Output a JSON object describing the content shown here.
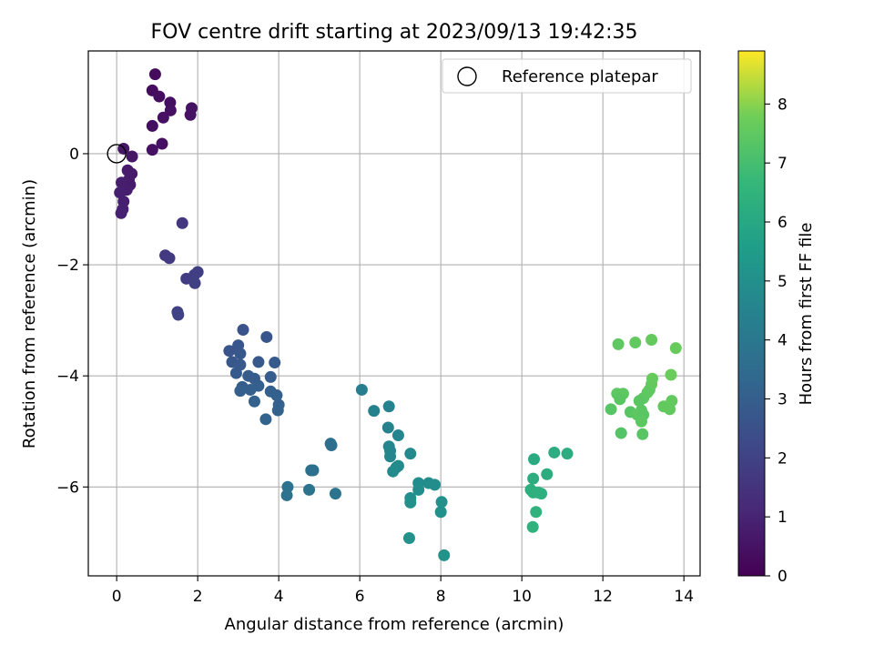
{
  "chart_data": {
    "type": "scatter",
    "title": "FOV centre drift starting at 2023/09/13 19:42:35",
    "xlabel": "Angular distance from reference (arcmin)",
    "ylabel": "Rotation from reference (arcmin)",
    "xlim": [
      -0.7,
      14.4
    ],
    "ylim": [
      -7.6,
      1.85
    ],
    "xticks": [
      0,
      2,
      4,
      6,
      8,
      10,
      12,
      14
    ],
    "yticks": [
      -6,
      -4,
      -2,
      0
    ],
    "grid": true,
    "legend": {
      "position": "top-right",
      "entries": [
        "Reference platepar"
      ]
    },
    "reference_point": {
      "x": 0,
      "y": 0
    },
    "colorbar": {
      "label": "Hours from first FF file",
      "colormap": "viridis",
      "range": [
        0,
        8.9
      ],
      "ticks": [
        0,
        1,
        2,
        3,
        4,
        5,
        6,
        7,
        8
      ]
    },
    "points": [
      [
        0.95,
        1.43,
        0.3
      ],
      [
        0.88,
        1.14,
        0.3
      ],
      [
        1.05,
        1.03,
        0.35
      ],
      [
        1.32,
        0.92,
        0.4
      ],
      [
        1.33,
        0.78,
        0.45
      ],
      [
        1.85,
        0.82,
        0.5
      ],
      [
        1.82,
        0.7,
        0.5
      ],
      [
        1.15,
        0.65,
        0.45
      ],
      [
        0.88,
        0.5,
        0.4
      ],
      [
        1.12,
        0.18,
        0.45
      ],
      [
        0.88,
        0.07,
        0.45
      ],
      [
        0.17,
        0.09,
        0.6
      ],
      [
        0.38,
        -0.05,
        0.6
      ],
      [
        0.27,
        -0.3,
        0.7
      ],
      [
        0.37,
        -0.36,
        0.7
      ],
      [
        0.3,
        -0.47,
        0.75
      ],
      [
        0.33,
        -0.56,
        0.75
      ],
      [
        0.25,
        -0.65,
        0.8
      ],
      [
        0.12,
        -0.52,
        0.8
      ],
      [
        0.08,
        -0.7,
        0.85
      ],
      [
        0.17,
        -0.86,
        0.85
      ],
      [
        0.15,
        -1.0,
        0.9
      ],
      [
        0.11,
        -1.07,
        0.9
      ],
      [
        1.62,
        -1.25,
        1.6
      ],
      [
        1.2,
        -1.83,
        1.7
      ],
      [
        1.3,
        -1.88,
        1.75
      ],
      [
        1.72,
        -2.25,
        1.8
      ],
      [
        1.92,
        -2.18,
        1.85
      ],
      [
        2.0,
        -2.13,
        1.85
      ],
      [
        1.93,
        -2.33,
        1.9
      ],
      [
        1.5,
        -2.85,
        1.95
      ],
      [
        1.52,
        -2.9,
        2.0
      ],
      [
        3.12,
        -3.17,
        2.6
      ],
      [
        3.7,
        -3.3,
        2.7
      ],
      [
        2.78,
        -3.55,
        2.65
      ],
      [
        3.0,
        -3.45,
        2.7
      ],
      [
        3.05,
        -3.6,
        2.75
      ],
      [
        2.85,
        -3.75,
        2.75
      ],
      [
        3.05,
        -3.8,
        2.8
      ],
      [
        3.5,
        -3.75,
        2.8
      ],
      [
        3.9,
        -3.76,
        2.85
      ],
      [
        2.95,
        -3.95,
        2.85
      ],
      [
        3.25,
        -4.0,
        2.9
      ],
      [
        3.4,
        -4.05,
        2.9
      ],
      [
        3.8,
        -4.02,
        2.95
      ],
      [
        3.1,
        -4.2,
        2.95
      ],
      [
        3.05,
        -4.27,
        3.0
      ],
      [
        3.3,
        -4.25,
        3.0
      ],
      [
        3.5,
        -4.18,
        3.0
      ],
      [
        3.8,
        -4.28,
        3.05
      ],
      [
        3.95,
        -4.35,
        3.05
      ],
      [
        4.0,
        -4.52,
        3.1
      ],
      [
        3.4,
        -4.46,
        3.1
      ],
      [
        3.98,
        -4.62,
        3.15
      ],
      [
        3.68,
        -4.78,
        3.2
      ],
      [
        5.28,
        -5.22,
        3.6
      ],
      [
        5.3,
        -5.25,
        3.65
      ],
      [
        4.8,
        -5.7,
        3.7
      ],
      [
        4.85,
        -5.7,
        3.7
      ],
      [
        4.22,
        -6.0,
        3.75
      ],
      [
        4.2,
        -6.15,
        3.75
      ],
      [
        4.75,
        -6.05,
        3.8
      ],
      [
        5.4,
        -6.12,
        3.8
      ],
      [
        6.05,
        -4.25,
        4.3
      ],
      [
        6.35,
        -4.63,
        4.4
      ],
      [
        6.72,
        -4.55,
        4.45
      ],
      [
        6.7,
        -4.93,
        4.5
      ],
      [
        6.95,
        -5.07,
        4.55
      ],
      [
        6.72,
        -5.27,
        4.6
      ],
      [
        6.75,
        -5.35,
        4.65
      ],
      [
        6.75,
        -5.45,
        4.65
      ],
      [
        7.25,
        -5.4,
        4.7
      ],
      [
        6.95,
        -5.62,
        4.75
      ],
      [
        6.9,
        -5.65,
        4.8
      ],
      [
        6.82,
        -5.72,
        4.8
      ],
      [
        7.45,
        -5.93,
        4.85
      ],
      [
        7.7,
        -5.93,
        4.9
      ],
      [
        7.85,
        -5.96,
        4.9
      ],
      [
        7.45,
        -6.05,
        4.95
      ],
      [
        7.25,
        -6.2,
        4.95
      ],
      [
        7.25,
        -6.28,
        5.0
      ],
      [
        8.02,
        -6.27,
        5.0
      ],
      [
        8.0,
        -6.45,
        5.05
      ],
      [
        7.22,
        -6.92,
        5.1
      ],
      [
        8.08,
        -7.23,
        5.1
      ],
      [
        10.3,
        -5.5,
        6.1
      ],
      [
        10.8,
        -5.38,
        6.2
      ],
      [
        11.12,
        -5.4,
        6.2
      ],
      [
        10.62,
        -5.77,
        6.25
      ],
      [
        10.28,
        -5.85,
        6.25
      ],
      [
        10.22,
        -6.05,
        6.3
      ],
      [
        10.28,
        -6.1,
        6.3
      ],
      [
        10.4,
        -6.1,
        6.35
      ],
      [
        10.48,
        -6.12,
        6.35
      ],
      [
        10.35,
        -6.45,
        6.4
      ],
      [
        10.27,
        -6.72,
        6.4
      ],
      [
        12.38,
        -3.43,
        7.5
      ],
      [
        12.8,
        -3.4,
        7.55
      ],
      [
        13.2,
        -3.35,
        7.6
      ],
      [
        13.8,
        -3.5,
        7.65
      ],
      [
        13.68,
        -3.98,
        7.7
      ],
      [
        13.22,
        -4.05,
        7.65
      ],
      [
        13.2,
        -4.15,
        7.6
      ],
      [
        13.15,
        -4.25,
        7.55
      ],
      [
        13.1,
        -4.3,
        7.5
      ],
      [
        12.35,
        -4.32,
        7.45
      ],
      [
        12.5,
        -4.32,
        7.45
      ],
      [
        12.42,
        -4.42,
        7.4
      ],
      [
        13.0,
        -4.4,
        7.45
      ],
      [
        12.9,
        -4.45,
        7.4
      ],
      [
        13.7,
        -4.45,
        7.55
      ],
      [
        13.6,
        -4.55,
        7.6
      ],
      [
        13.5,
        -4.55,
        7.55
      ],
      [
        13.65,
        -4.6,
        7.55
      ],
      [
        12.2,
        -4.6,
        7.35
      ],
      [
        12.68,
        -4.65,
        7.35
      ],
      [
        12.95,
        -4.62,
        7.4
      ],
      [
        12.85,
        -4.7,
        7.45
      ],
      [
        13.0,
        -4.7,
        7.4
      ],
      [
        12.95,
        -4.82,
        7.45
      ],
      [
        12.45,
        -5.03,
        7.3
      ],
      [
        12.98,
        -5.05,
        7.35
      ]
    ]
  }
}
